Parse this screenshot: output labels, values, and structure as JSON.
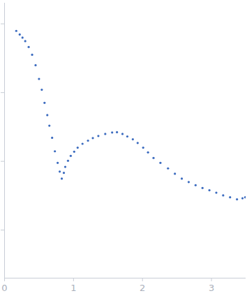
{
  "chart_data": {
    "type": "scatter",
    "color": "#3b6bbf",
    "marker": "circle",
    "log": "y",
    "tick_labels": "x",
    "x": [
      0.17,
      0.22,
      0.26,
      0.3,
      0.35,
      0.4,
      0.45,
      0.5,
      0.54,
      0.58,
      0.62,
      0.65,
      0.69,
      0.73,
      0.77,
      0.8,
      0.83,
      0.86,
      0.88,
      0.92,
      0.96,
      1.01,
      1.06,
      1.13,
      1.21,
      1.28,
      1.36,
      1.46,
      1.56,
      1.63,
      1.71,
      1.78,
      1.86,
      1.93,
      2.01,
      2.08,
      2.16,
      2.26,
      2.37,
      2.47,
      2.57,
      2.67,
      2.77,
      2.87,
      2.97,
      3.07,
      3.17,
      3.27,
      3.37,
      3.45,
      3.49
    ],
    "values": [
      0.79,
      0.7,
      0.63,
      0.56,
      0.46,
      0.355,
      0.25,
      0.158,
      0.11,
      0.071,
      0.047,
      0.033,
      0.022,
      0.014,
      0.0095,
      0.0071,
      0.0056,
      0.0068,
      0.0083,
      0.0102,
      0.012,
      0.0138,
      0.0158,
      0.018,
      0.02,
      0.0218,
      0.0234,
      0.025,
      0.0263,
      0.0265,
      0.025,
      0.023,
      0.0209,
      0.0185,
      0.0158,
      0.0135,
      0.0112,
      0.0095,
      0.0079,
      0.0066,
      0.0056,
      0.005,
      0.0045,
      0.0041,
      0.0038,
      0.0035,
      0.0032,
      0.003,
      0.0028,
      0.0029,
      0.003
    ],
    "xlim": [
      0,
      3.5
    ],
    "xticks": [
      0,
      1,
      2,
      3
    ],
    "ylim": [
      0.0002,
      2
    ],
    "yticks": [
      0.001,
      0.01,
      0.1,
      1
    ]
  }
}
